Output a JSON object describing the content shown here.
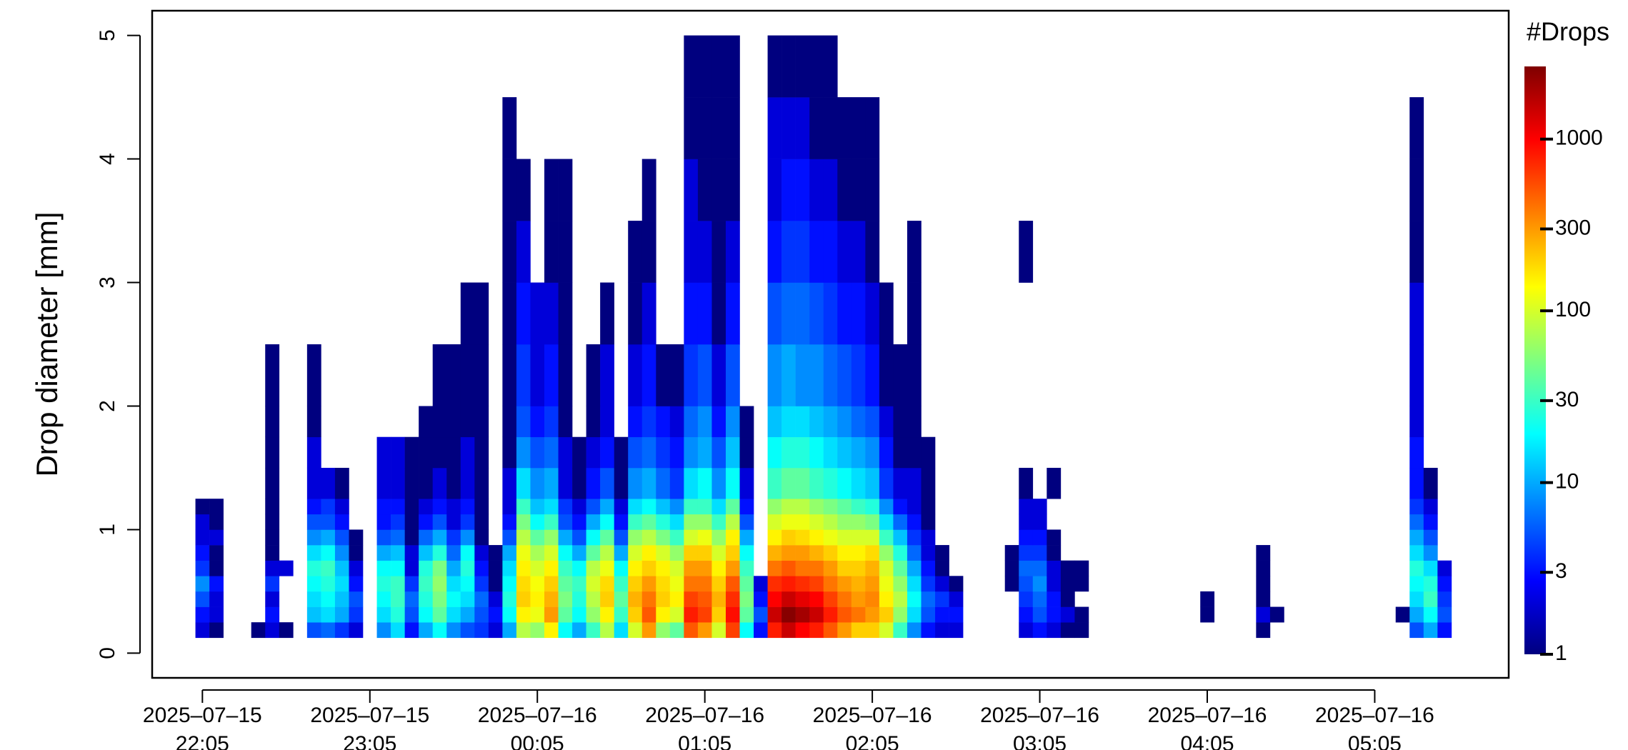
{
  "chart_data": {
    "type": "heatmap",
    "y_label": "Drop diameter [mm]",
    "colorbar_title": "#Drops",
    "xlim": [
      "2025-07-15 21:47",
      "2025-07-16 05:53"
    ],
    "xticks": [
      {
        "value": "2025-07-15 22:05",
        "label": "2025–07–15\n22:05"
      },
      {
        "value": "2025-07-15 23:05",
        "label": "2025–07–15\n23:05"
      },
      {
        "value": "2025-07-16 00:05",
        "label": "2025–07–16\n00:05"
      },
      {
        "value": "2025-07-16 01:05",
        "label": "2025–07–16\n01:05"
      },
      {
        "value": "2025-07-16 02:05",
        "label": "2025–07–16\n02:05"
      },
      {
        "value": "2025-07-16 03:05",
        "label": "2025–07–16\n03:05"
      },
      {
        "value": "2025-07-16 04:05",
        "label": "2025–07–16\n04:05"
      },
      {
        "value": "2025-07-16 05:05",
        "label": "2025–07–16\n05:05"
      }
    ],
    "ylim": [
      -0.2,
      5.2
    ],
    "yticks": [
      0,
      1,
      2,
      3,
      4,
      5
    ],
    "zlim": [
      1,
      2650
    ],
    "zticks": [
      1,
      3,
      10,
      30,
      100,
      300,
      1000
    ],
    "log_color_scale": true,
    "colormap": [
      "#00007F",
      "#0000FF",
      "#007FFF",
      "#00FFFF",
      "#7FFF7F",
      "#FFFF00",
      "#FF7F00",
      "#FF0000",
      "#7F0000"
    ],
    "y_bins": [
      0.125,
      0.25,
      0.375,
      0.5,
      0.625,
      0.75,
      0.875,
      1,
      1.125,
      1.25,
      1.5,
      1.75,
      2,
      2.5,
      3,
      3.5,
      4,
      4.5,
      5
    ],
    "x": [
      "2025-07-15 22:05",
      "2025-07-15 22:10",
      "2025-07-15 22:25",
      "2025-07-15 22:30",
      "2025-07-15 22:35",
      "2025-07-15 22:45",
      "2025-07-15 22:50",
      "2025-07-15 22:55",
      "2025-07-15 23:00",
      "2025-07-15 23:10",
      "2025-07-15 23:15",
      "2025-07-15 23:20",
      "2025-07-15 23:25",
      "2025-07-15 23:30",
      "2025-07-15 23:35",
      "2025-07-15 23:40",
      "2025-07-15 23:45",
      "2025-07-15 23:50",
      "2025-07-15 23:55",
      "2025-07-16 00:00",
      "2025-07-16 00:05",
      "2025-07-16 00:10",
      "2025-07-16 00:15",
      "2025-07-16 00:20",
      "2025-07-16 00:25",
      "2025-07-16 00:30",
      "2025-07-16 00:35",
      "2025-07-16 00:40",
      "2025-07-16 00:45",
      "2025-07-16 00:50",
      "2025-07-16 00:55",
      "2025-07-16 01:00",
      "2025-07-16 01:05",
      "2025-07-16 01:10",
      "2025-07-16 01:15",
      "2025-07-16 01:20",
      "2025-07-16 01:25",
      "2025-07-16 01:30",
      "2025-07-16 01:35",
      "2025-07-16 01:40",
      "2025-07-16 01:45",
      "2025-07-16 01:50",
      "2025-07-16 01:55",
      "2025-07-16 02:00",
      "2025-07-16 02:05",
      "2025-07-16 02:10",
      "2025-07-16 02:15",
      "2025-07-16 02:20",
      "2025-07-16 02:25",
      "2025-07-16 02:30",
      "2025-07-16 02:35",
      "2025-07-16 02:55",
      "2025-07-16 03:00",
      "2025-07-16 03:05",
      "2025-07-16 03:10",
      "2025-07-16 03:15",
      "2025-07-16 03:20",
      "2025-07-16 04:05",
      "2025-07-16 04:25",
      "2025-07-16 04:30",
      "2025-07-16 05:15",
      "2025-07-16 05:20",
      "2025-07-16 05:25",
      "2025-07-16 05:30"
    ],
    "z": [
      [
        2,
        3,
        5,
        8,
        4,
        3,
        2,
        2,
        1,
        null,
        null,
        null,
        null,
        null,
        null,
        null,
        null,
        null
      ],
      [
        1,
        2,
        2,
        3,
        1,
        1,
        2,
        1,
        1,
        null,
        null,
        null,
        null,
        null,
        null,
        null,
        null,
        null
      ],
      [
        1,
        null,
        null,
        null,
        null,
        null,
        null,
        null,
        null,
        null,
        null,
        null,
        null,
        null,
        null,
        null,
        null,
        null
      ],
      [
        2,
        3,
        2,
        4,
        2,
        1,
        1,
        1,
        1,
        1,
        1,
        1,
        1,
        null,
        null,
        null,
        null,
        null
      ],
      [
        1,
        null,
        null,
        null,
        2,
        null,
        null,
        null,
        null,
        null,
        null,
        null,
        null,
        null,
        null,
        null,
        null,
        null
      ],
      [
        5,
        12,
        15,
        20,
        25,
        15,
        8,
        5,
        3,
        2,
        2,
        1,
        1,
        null,
        null,
        null,
        null,
        null
      ],
      [
        6,
        15,
        20,
        25,
        30,
        20,
        10,
        5,
        4,
        2,
        null,
        null,
        null,
        null,
        null,
        null,
        null,
        null
      ],
      [
        4,
        10,
        12,
        15,
        12,
        8,
        5,
        3,
        2,
        1,
        null,
        null,
        null,
        null,
        null,
        null,
        null,
        null
      ],
      [
        2,
        4,
        5,
        3,
        2,
        1,
        1,
        null,
        null,
        null,
        null,
        null,
        null,
        null,
        null,
        null,
        null,
        null
      ],
      [
        8,
        15,
        20,
        25,
        20,
        10,
        5,
        3,
        3,
        2,
        2,
        null,
        null,
        null,
        null,
        null,
        null,
        null
      ],
      [
        15,
        25,
        30,
        30,
        20,
        12,
        6,
        4,
        3,
        2,
        2,
        null,
        null,
        null,
        null,
        null,
        null,
        null
      ],
      [
        3,
        5,
        6,
        4,
        2,
        2,
        1,
        1,
        1,
        1,
        1,
        null,
        null,
        null,
        null,
        null,
        null,
        null
      ],
      [
        10,
        20,
        25,
        30,
        25,
        12,
        6,
        3,
        2,
        1,
        1,
        1,
        null,
        null,
        null,
        null,
        null,
        null
      ],
      [
        20,
        40,
        50,
        60,
        50,
        25,
        10,
        5,
        3,
        2,
        1,
        1,
        1,
        null,
        null,
        null,
        null,
        null
      ],
      [
        8,
        15,
        20,
        15,
        10,
        6,
        4,
        2,
        2,
        1,
        1,
        1,
        1,
        null,
        null,
        null,
        null,
        null
      ],
      [
        5,
        10,
        15,
        20,
        25,
        20,
        8,
        4,
        3,
        2,
        2,
        1,
        1,
        1,
        null,
        null,
        null,
        null
      ],
      [
        4,
        5,
        6,
        4,
        3,
        2,
        1,
        1,
        1,
        1,
        1,
        1,
        1,
        1,
        null,
        null,
        null,
        null
      ],
      [
        2,
        3,
        2,
        1,
        1,
        1,
        null,
        null,
        null,
        null,
        null,
        null,
        null,
        null,
        null,
        null,
        null,
        null
      ],
      [
        10,
        20,
        25,
        20,
        15,
        10,
        5,
        3,
        2,
        2,
        1,
        1,
        1,
        1,
        1,
        1,
        1,
        null
      ],
      [
        80,
        150,
        200,
        180,
        150,
        120,
        80,
        50,
        30,
        15,
        8,
        5,
        4,
        3,
        2,
        1,
        null,
        null
      ],
      [
        60,
        120,
        150,
        130,
        100,
        70,
        40,
        20,
        12,
        8,
        5,
        3,
        2,
        2,
        null,
        null,
        null,
        null
      ],
      [
        150,
        300,
        250,
        200,
        150,
        100,
        60,
        30,
        15,
        10,
        6,
        4,
        3,
        2,
        1,
        1,
        null,
        null
      ],
      [
        20,
        40,
        50,
        40,
        30,
        20,
        10,
        5,
        4,
        2,
        2,
        1,
        1,
        1,
        1,
        1,
        null,
        null
      ],
      [
        10,
        20,
        25,
        30,
        20,
        10,
        5,
        3,
        2,
        1,
        1,
        null,
        null,
        null,
        null,
        null,
        null,
        null
      ],
      [
        30,
        60,
        80,
        100,
        80,
        40,
        20,
        10,
        5,
        3,
        2,
        1,
        1,
        null,
        null,
        null,
        null,
        null
      ],
      [
        80,
        150,
        200,
        180,
        120,
        80,
        40,
        20,
        10,
        5,
        3,
        2,
        2,
        1,
        null,
        null,
        null,
        null
      ],
      [
        15,
        30,
        40,
        30,
        20,
        10,
        5,
        3,
        2,
        1,
        1,
        null,
        null,
        null,
        null,
        null,
        null,
        null
      ],
      [
        100,
        200,
        250,
        200,
        150,
        100,
        60,
        30,
        15,
        8,
        5,
        3,
        2,
        1,
        1,
        null,
        null,
        null
      ],
      [
        300,
        500,
        400,
        300,
        200,
        150,
        80,
        40,
        20,
        10,
        6,
        4,
        3,
        2,
        1,
        1,
        null,
        null
      ],
      [
        60,
        150,
        200,
        180,
        150,
        100,
        50,
        25,
        12,
        6,
        4,
        3,
        1,
        null,
        null,
        null,
        null,
        null
      ],
      [
        40,
        100,
        150,
        120,
        100,
        60,
        30,
        15,
        8,
        4,
        3,
        2,
        1,
        null,
        null,
        null,
        null,
        null
      ],
      [
        500,
        800,
        600,
        400,
        300,
        200,
        100,
        60,
        30,
        15,
        8,
        6,
        4,
        3,
        2,
        2,
        1,
        1
      ],
      [
        300,
        600,
        500,
        400,
        300,
        200,
        120,
        60,
        30,
        20,
        10,
        8,
        5,
        3,
        2,
        1,
        1,
        1
      ],
      [
        100,
        200,
        250,
        200,
        150,
        100,
        60,
        30,
        15,
        8,
        5,
        3,
        2,
        1,
        1,
        1,
        1,
        1
      ],
      [
        600,
        900,
        700,
        500,
        300,
        200,
        150,
        80,
        40,
        20,
        12,
        8,
        5,
        3,
        2,
        1,
        1,
        1
      ],
      [
        20,
        40,
        50,
        40,
        30,
        20,
        10,
        5,
        3,
        2,
        1,
        1,
        null,
        null,
        null,
        null,
        null,
        null
      ],
      [
        3,
        5,
        3,
        2,
        null,
        null,
        null,
        null,
        null,
        null,
        null,
        null,
        null,
        null,
        null,
        null,
        null,
        null
      ],
      [
        800,
        1500,
        1000,
        700,
        400,
        250,
        150,
        100,
        60,
        30,
        20,
        12,
        8,
        5,
        3,
        2,
        2,
        1
      ],
      [
        1500,
        2500,
        1500,
        800,
        500,
        300,
        200,
        120,
        80,
        40,
        25,
        15,
        10,
        6,
        4,
        3,
        2,
        1
      ],
      [
        1000,
        2000,
        1200,
        700,
        400,
        300,
        180,
        120,
        80,
        40,
        25,
        15,
        8,
        6,
        4,
        3,
        2,
        1
      ],
      [
        800,
        1500,
        1000,
        600,
        400,
        250,
        150,
        100,
        60,
        30,
        20,
        12,
        8,
        5,
        3,
        2,
        1,
        1
      ],
      [
        500,
        800,
        600,
        400,
        300,
        200,
        120,
        80,
        50,
        25,
        15,
        10,
        6,
        4,
        3,
        2,
        1,
        1
      ],
      [
        300,
        500,
        400,
        300,
        200,
        150,
        100,
        60,
        40,
        20,
        12,
        8,
        5,
        3,
        2,
        1,
        1,
        null
      ],
      [
        200,
        400,
        300,
        250,
        200,
        150,
        100,
        60,
        30,
        15,
        10,
        6,
        4,
        3,
        2,
        1,
        1,
        null
      ],
      [
        200,
        300,
        350,
        300,
        250,
        180,
        100,
        50,
        25,
        12,
        8,
        5,
        3,
        2,
        1,
        1,
        1,
        null
      ],
      [
        100,
        200,
        150,
        120,
        100,
        60,
        30,
        15,
        8,
        4,
        3,
        2,
        1,
        1,
        null,
        null,
        null,
        null
      ],
      [
        30,
        60,
        80,
        60,
        40,
        25,
        12,
        6,
        3,
        2,
        1,
        1,
        1,
        null,
        null,
        null,
        null,
        null
      ],
      [
        8,
        15,
        20,
        15,
        10,
        6,
        4,
        3,
        2,
        2,
        1,
        1,
        1,
        1,
        1,
        null,
        null,
        null
      ],
      [
        3,
        5,
        6,
        4,
        3,
        2,
        2,
        1,
        1,
        1,
        1,
        null,
        null,
        null,
        null,
        null,
        null,
        null
      ],
      [
        2,
        3,
        4,
        2,
        1,
        1,
        null,
        null,
        null,
        null,
        null,
        null,
        null,
        null,
        null,
        null,
        null,
        null
      ],
      [
        2,
        3,
        2,
        1,
        null,
        null,
        null,
        null,
        null,
        null,
        null,
        null,
        null,
        null,
        null,
        null,
        null,
        null
      ],
      [
        null,
        null,
        null,
        1,
        1,
        1,
        null,
        null,
        null,
        null,
        null,
        null,
        null,
        null,
        null,
        null,
        null,
        null
      ],
      [
        2,
        3,
        4,
        5,
        6,
        4,
        3,
        2,
        2,
        1,
        null,
        null,
        null,
        null,
        1,
        null,
        null,
        null
      ],
      [
        3,
        5,
        6,
        8,
        6,
        4,
        3,
        2,
        2,
        null,
        null,
        null,
        null,
        null,
        null,
        null,
        null,
        null
      ],
      [
        2,
        3,
        3,
        2,
        2,
        1,
        1,
        null,
        null,
        1,
        null,
        null,
        null,
        null,
        null,
        null,
        null,
        null
      ],
      [
        1,
        2,
        1,
        1,
        1,
        null,
        null,
        null,
        null,
        null,
        null,
        null,
        null,
        null,
        null,
        null,
        null,
        null
      ],
      [
        1,
        1,
        null,
        1,
        1,
        null,
        null,
        null,
        null,
        null,
        null,
        null,
        null,
        null,
        null,
        null,
        null,
        null
      ],
      [
        null,
        1,
        1,
        null,
        null,
        null,
        null,
        null,
        null,
        null,
        null,
        null,
        null,
        null,
        null,
        null,
        null,
        null
      ],
      [
        1,
        2,
        1,
        1,
        1,
        1,
        null,
        null,
        null,
        null,
        null,
        null,
        null,
        null,
        null,
        null,
        null,
        null
      ],
      [
        null,
        1,
        null,
        null,
        null,
        null,
        null,
        null,
        null,
        null,
        null,
        null,
        null,
        null,
        null,
        null,
        null,
        null
      ],
      [
        null,
        1,
        null,
        null,
        null,
        null,
        null,
        null,
        null,
        null,
        null,
        null,
        null,
        null,
        null,
        null,
        null,
        null
      ],
      [
        5,
        10,
        15,
        20,
        25,
        15,
        10,
        6,
        4,
        3,
        3,
        2,
        2,
        2,
        1,
        1,
        1,
        null
      ],
      [
        10,
        20,
        30,
        25,
        15,
        8,
        5,
        3,
        2,
        1,
        null,
        null,
        null,
        null,
        null,
        null,
        null,
        null
      ],
      [
        3,
        5,
        4,
        3,
        2,
        null,
        null,
        null,
        null,
        null,
        null,
        null,
        null,
        null,
        null,
        null,
        null,
        null
      ]
    ]
  }
}
